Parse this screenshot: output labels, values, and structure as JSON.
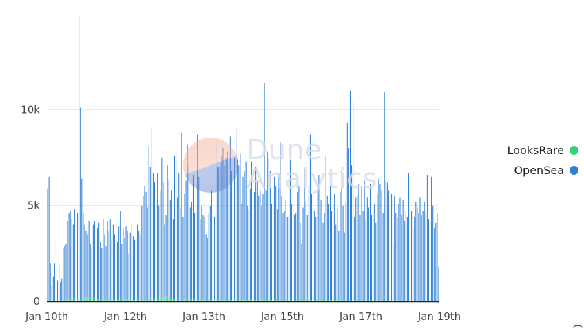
{
  "chart_data": {
    "type": "bar",
    "title": "",
    "xlabel": "",
    "ylabel": "",
    "ylim": [
      0,
      15000
    ],
    "yticks": [
      {
        "value": 0,
        "label": "0"
      },
      {
        "value": 5000,
        "label": "5k"
      },
      {
        "value": 10000,
        "label": "10k"
      }
    ],
    "xticks": [
      {
        "index": 0,
        "label": "Jan 10th"
      },
      {
        "index": 40,
        "label": "Jan 12th"
      },
      {
        "index": 80,
        "label": "Jan 13th"
      },
      {
        "index": 120,
        "label": "Jan 15th"
      },
      {
        "index": 160,
        "label": "Jan 17th"
      },
      {
        "index": 200,
        "label": "Jan 19th"
      }
    ],
    "series": [
      {
        "name": "OpenSea",
        "color": "#2f7fd6",
        "values": [
          5900,
          6500,
          2000,
          800,
          1300,
          2000,
          3300,
          1100,
          2000,
          1000,
          1200,
          2800,
          2900,
          3000,
          4200,
          4600,
          4700,
          4300,
          4000,
          4800,
          3500,
          4600,
          14900,
          10100,
          6400,
          4600,
          4000,
          3700,
          3500,
          4200,
          3000,
          2800,
          4000,
          4200,
          3300,
          3800,
          4100,
          3100,
          2800,
          4300,
          3500,
          2900,
          4200,
          3700,
          4300,
          3200,
          4000,
          3500,
          4200,
          3100,
          3900,
          4700,
          3000,
          3800,
          3300,
          3900,
          3700,
          2500,
          3600,
          4000,
          3400,
          3200,
          3300,
          4000,
          3700,
          3500,
          5000,
          5500,
          6000,
          5700,
          4900,
          8100,
          7000,
          9100,
          6700,
          6200,
          5300,
          6700,
          5000,
          5800,
          7500,
          6200,
          4000,
          4500,
          7100,
          6300,
          5300,
          5800,
          4300,
          7600,
          7700,
          5400,
          6700,
          4900,
          8800,
          4400,
          5600,
          6300,
          8200,
          7100,
          4900,
          5200,
          6600,
          4600,
          5000,
          8700,
          6500,
          4300,
          5000,
          4500,
          4400,
          3500,
          3300,
          4600,
          5000,
          5800,
          4900,
          4400,
          8200,
          7000,
          7000,
          7200,
          7600,
          8000,
          7100,
          7500,
          7800,
          6000,
          8600,
          6800,
          6400,
          7500,
          9000,
          7400,
          7100,
          7700,
          5100,
          6500,
          6800,
          7300,
          5000,
          4800,
          5900,
          7300,
          6400,
          5700,
          7000,
          6300,
          5500,
          5800,
          5000,
          5600,
          11400,
          5800,
          7800,
          7500,
          6800,
          5100,
          5500,
          6500,
          6000,
          4800,
          6700,
          8300,
          5500,
          4600,
          4700,
          5300,
          4400,
          4400,
          7400,
          5100,
          5200,
          4500,
          4600,
          5700,
          6000,
          4100,
          3000,
          4900,
          6900,
          5200,
          4500,
          6000,
          8700,
          5600,
          4900,
          4700,
          4400,
          6100,
          6600,
          5300,
          5300,
          4100,
          4600,
          7600,
          5500,
          5100,
          6000,
          4700,
          5000,
          5600,
          4000,
          4900,
          3700,
          5700,
          6800,
          5000,
          3600,
          5200,
          9300,
          8000,
          11000,
          7100,
          10400,
          4400,
          5400,
          5500,
          6100,
          4500,
          6000,
          4700,
          6300,
          4300,
          5400,
          4900,
          6100,
          4500,
          5000,
          5100,
          4100,
          5600,
          6400,
          6100,
          5800,
          4600,
          10900,
          6300,
          6200,
          5800,
          5800,
          5600,
          3000,
          5500,
          4600,
          4400,
          5100,
          5400,
          4500,
          5300,
          4200,
          4700,
          4400,
          6700,
          4200,
          4700,
          3800,
          4400,
          5200,
          4900,
          4600,
          5400,
          4500,
          4700,
          5200,
          4600,
          6600,
          4300,
          4200,
          6500,
          5000,
          3800,
          4100,
          4600,
          1800
        ]
      },
      {
        "name": "LooksRare",
        "color": "#36d07a",
        "values": [
          60,
          80,
          40,
          30,
          50,
          60,
          40,
          30,
          40,
          30,
          40,
          50,
          60,
          80,
          120,
          150,
          140,
          110,
          160,
          180,
          220,
          150,
          100,
          90,
          120,
          160,
          200,
          260,
          200,
          220,
          260,
          300,
          260,
          200,
          160,
          120,
          100,
          80,
          60,
          70,
          80,
          90,
          120,
          110,
          100,
          90,
          80,
          90,
          100,
          120,
          140,
          160,
          200,
          180,
          140,
          120,
          110,
          100,
          90,
          80,
          80,
          90,
          100,
          90,
          80,
          60,
          60,
          80,
          70,
          60,
          50,
          60,
          80,
          90,
          100,
          120,
          140,
          160,
          180,
          200,
          220,
          240,
          260,
          280,
          300,
          250,
          200,
          150,
          120,
          100,
          90,
          80,
          70,
          60,
          60,
          70,
          80,
          90,
          100,
          110,
          120,
          140,
          160,
          150,
          130,
          120,
          110,
          100,
          90,
          80,
          70,
          60,
          70,
          80,
          90,
          100,
          110,
          120,
          130,
          120,
          110,
          100,
          90,
          80,
          70,
          60,
          50,
          60,
          70,
          80,
          90,
          100,
          90,
          80,
          70,
          60,
          70,
          80,
          90,
          100,
          110,
          120,
          110,
          100,
          90,
          80,
          70,
          60,
          60,
          70,
          80,
          90,
          80,
          70,
          60,
          60,
          70,
          80,
          90,
          100,
          90,
          80,
          70,
          60,
          50,
          60,
          70,
          80,
          90,
          80,
          70,
          60,
          50,
          60,
          70,
          80,
          70,
          60,
          50,
          60,
          70,
          80,
          90,
          80,
          70,
          60,
          50,
          60,
          70,
          80,
          70,
          60,
          50,
          60,
          70,
          60,
          50,
          60,
          70,
          60,
          50,
          60,
          70,
          80,
          70,
          60,
          50,
          60,
          70,
          60,
          50,
          40,
          50,
          60,
          50,
          40,
          50,
          60,
          50,
          40,
          50,
          60,
          50,
          40,
          50,
          60,
          50,
          40,
          50,
          60,
          50,
          40,
          50,
          60,
          50,
          40,
          50,
          60,
          50,
          40,
          50,
          60,
          50,
          40,
          50,
          60,
          50,
          40,
          50,
          40,
          50,
          40,
          50,
          40,
          50,
          40,
          50,
          40,
          30
        ]
      }
    ],
    "legend_position": "right"
  },
  "watermark": {
    "line1": "Dune",
    "line2": "Analytics"
  },
  "colors": {
    "opensea": "#2f7fd6",
    "looksrare": "#36d07a",
    "gridline": "#e6e6e6",
    "axis": "#222222"
  }
}
